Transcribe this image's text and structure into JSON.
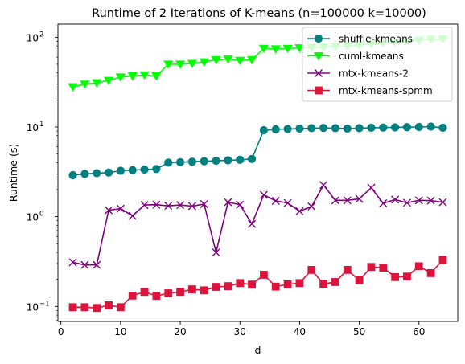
{
  "chart_data": {
    "type": "line",
    "title": "Runtime of 2 Iterations of K-means (n=100000 k=10000)",
    "xlabel": "d",
    "ylabel": "Runtime (s)",
    "xscale": "linear",
    "yscale": "log",
    "xlim": [
      -0.5,
      66.5
    ],
    "ylim": [
      0.068,
      140
    ],
    "xticks": [
      0,
      10,
      20,
      30,
      40,
      50,
      60
    ],
    "xtick_labels": [
      "0",
      "10",
      "20",
      "30",
      "40",
      "50",
      "60"
    ],
    "yticks": [
      0.1,
      1,
      10,
      100
    ],
    "ytick_labels": [
      "10",
      "10",
      "10",
      "10"
    ],
    "ytick_exponents": [
      "−1",
      "0",
      "1",
      "2"
    ],
    "grid": false,
    "legend_position": "top-right",
    "x": [
      2,
      4,
      6,
      8,
      10,
      12,
      14,
      16,
      18,
      20,
      22,
      24,
      26,
      28,
      30,
      32,
      34,
      36,
      38,
      40,
      42,
      44,
      46,
      48,
      50,
      52,
      54,
      56,
      58,
      60,
      62,
      64
    ],
    "series": [
      {
        "name": "shuffle-kmeans",
        "color": "#008080",
        "marker": "circle",
        "values": [
          2.9,
          3.0,
          3.05,
          3.1,
          3.25,
          3.3,
          3.35,
          3.4,
          4.0,
          4.05,
          4.1,
          4.15,
          4.2,
          4.25,
          4.3,
          4.4,
          9.2,
          9.4,
          9.5,
          9.6,
          9.7,
          9.75,
          9.7,
          9.6,
          9.7,
          9.8,
          9.85,
          9.9,
          9.95,
          10.0,
          10.1,
          9.8
        ]
      },
      {
        "name": "cuml-kmeans",
        "color": "#00ff00",
        "marker": "triangle-down",
        "values": [
          28,
          30,
          31,
          33,
          36,
          37,
          38,
          37,
          50,
          50,
          51,
          53,
          56,
          57,
          55,
          56,
          75,
          74,
          75,
          76,
          77,
          78,
          79,
          80,
          82,
          84,
          86,
          88,
          90,
          92,
          95,
          96
        ]
      },
      {
        "name": "mtx-kmeans-2",
        "color": "#800080",
        "marker": "x",
        "values": [
          0.31,
          0.29,
          0.29,
          1.18,
          1.23,
          1.02,
          1.35,
          1.36,
          1.32,
          1.35,
          1.31,
          1.38,
          0.4,
          1.45,
          1.36,
          0.83,
          1.75,
          1.5,
          1.42,
          1.15,
          1.3,
          2.25,
          1.52,
          1.52,
          1.58,
          2.1,
          1.41,
          1.55,
          1.43,
          1.52,
          1.51,
          1.45
        ]
      },
      {
        "name": "mtx-kmeans-spmm",
        "color": "#dc143c",
        "marker": "square",
        "values": [
          0.098,
          0.098,
          0.096,
          0.103,
          0.098,
          0.132,
          0.145,
          0.131,
          0.14,
          0.145,
          0.155,
          0.151,
          0.165,
          0.168,
          0.182,
          0.175,
          0.225,
          0.166,
          0.176,
          0.182,
          0.255,
          0.178,
          0.187,
          0.255,
          0.195,
          0.275,
          0.27,
          0.212,
          0.215,
          0.28,
          0.235,
          0.33
        ]
      }
    ]
  }
}
